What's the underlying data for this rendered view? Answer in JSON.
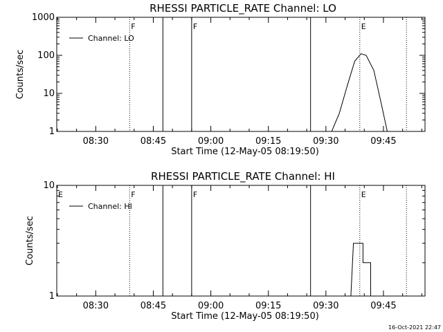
{
  "footer": {
    "timestamp": "16-Oct-2021 22:47"
  },
  "chart_data": [
    {
      "type": "line",
      "title": "RHESSI PARTICLE_RATE Channel: LO",
      "xlabel": "Start Time (12-May-05 08:19:50)",
      "ylabel": "Counts/sec",
      "yscale": "log",
      "ylim": [
        1,
        1000
      ],
      "xlim": [
        "08:19:50",
        "09:55:50"
      ],
      "yticks": [
        {
          "value": 1,
          "label": "1"
        },
        {
          "value": 10,
          "label": "10"
        },
        {
          "value": 100,
          "label": "100"
        },
        {
          "value": 1000,
          "label": "1000"
        }
      ],
      "xticks": [
        "08:30",
        "08:45",
        "09:00",
        "09:15",
        "09:30",
        "09:45"
      ],
      "legend": {
        "placement": "top-left",
        "entries": [
          "Channel: LO"
        ]
      },
      "series": [
        {
          "name": "Channel: LO",
          "x": [
            "09:21:10",
            "09:31:30",
            "09:33:30",
            "09:35:30",
            "09:37:30",
            "09:39:10",
            "09:40:30",
            "09:42:30",
            "09:44:30",
            "09:46:00"
          ],
          "values": [
            1,
            1,
            3,
            15,
            70,
            110,
            100,
            40,
            5,
            1
          ]
        }
      ],
      "markers": [
        {
          "time": "08:38:50",
          "label": "F",
          "style": "dotted"
        },
        {
          "time": "08:47:30",
          "label": "",
          "style": "solid"
        },
        {
          "time": "08:55:00",
          "label": "F",
          "style": "solid"
        },
        {
          "time": "09:26:00",
          "label": "",
          "style": "solid"
        },
        {
          "time": "09:38:50",
          "label": "E",
          "style": "dotted"
        },
        {
          "time": "09:51:00",
          "label": "",
          "style": "dotted"
        }
      ]
    },
    {
      "type": "line",
      "title": "RHESSI PARTICLE_RATE Channel: HI",
      "xlabel": "Start Time (12-May-05 08:19:50)",
      "ylabel": "Counts/sec",
      "yscale": "log",
      "ylim": [
        1,
        10
      ],
      "xlim": [
        "08:19:50",
        "09:55:50"
      ],
      "yticks": [
        {
          "value": 1,
          "label": "1"
        },
        {
          "value": 10,
          "label": "10"
        }
      ],
      "xticks": [
        "08:30",
        "08:45",
        "09:00",
        "09:15",
        "09:30",
        "09:45"
      ],
      "legend": {
        "placement": "top-left",
        "entries": [
          "Channel: HI"
        ]
      },
      "series": [
        {
          "name": "Channel: HI",
          "x": [
            "09:25:00",
            "09:36:30",
            "09:37:10",
            "09:37:40",
            "09:39:40",
            "09:39:40",
            "09:41:40",
            "09:41:40",
            "09:55:50"
          ],
          "values": [
            1,
            1,
            3,
            3,
            3,
            2,
            2,
            1,
            1
          ]
        }
      ],
      "markers": [
        {
          "time": "08:19:50",
          "label": "E",
          "style": "none"
        },
        {
          "time": "08:38:50",
          "label": "F",
          "style": "dotted"
        },
        {
          "time": "08:47:30",
          "label": "",
          "style": "solid"
        },
        {
          "time": "08:55:00",
          "label": "F",
          "style": "solid"
        },
        {
          "time": "09:26:00",
          "label": "",
          "style": "solid"
        },
        {
          "time": "09:38:50",
          "label": "E",
          "style": "dotted"
        },
        {
          "time": "09:51:00",
          "label": "",
          "style": "dotted"
        }
      ]
    }
  ]
}
